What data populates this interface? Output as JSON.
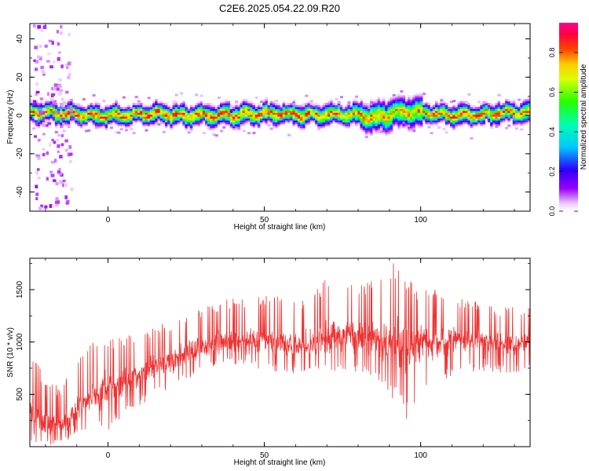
{
  "title": "C2E6.2025.054.22.09.R20",
  "chart_data": [
    {
      "type": "heatmap",
      "title": "C2E6.2025.054.22.09.R20",
      "xlabel": "Height of straight line (km)",
      "ylabel": "Frequency (Hz)",
      "xlim": [
        -25,
        135
      ],
      "ylim": [
        -50,
        48
      ],
      "x_ticks": [
        "0",
        "50",
        "100"
      ],
      "y_ticks": [
        "-40",
        "-20",
        "0",
        "20",
        "40"
      ],
      "x_tick_values": [
        0,
        50,
        100
      ],
      "y_tick_values": [
        -40,
        -20,
        0,
        20,
        40
      ],
      "grid": false,
      "colorbar": {
        "label": "Normalized spectral amplitude",
        "range": [
          0.0,
          0.95
        ],
        "ticks": [
          "0.0",
          "0.2",
          "0.4",
          "0.6",
          "0.8"
        ],
        "tick_values": [
          0.0,
          0.2,
          0.4,
          0.6,
          0.8
        ],
        "colormap": "rainbow (white, violet, blue, cyan, green, yellow, orange, red, magenta)"
      },
      "ridge": {
        "description": "narrow high-amplitude band near 0 Hz across all heights, plus sparse low-amplitude speckle below -12 km",
        "x": [
          -25,
          -15,
          -5,
          5,
          15,
          25,
          35,
          45,
          55,
          65,
          75,
          85,
          95,
          105,
          115,
          125,
          135
        ],
        "center_hz": [
          2,
          1,
          0,
          0,
          1,
          0,
          0,
          1,
          1,
          0,
          1,
          -1,
          2,
          1,
          0,
          1,
          2
        ],
        "peak_amplitude": [
          0.85,
          0.9,
          0.92,
          0.92,
          0.9,
          0.9,
          0.9,
          0.92,
          0.9,
          0.88,
          0.88,
          0.85,
          0.8,
          0.88,
          0.9,
          0.88,
          0.88
        ]
      }
    },
    {
      "type": "line",
      "xlabel": "Height of straight line (km)",
      "ylabel": "SNR (10 * v/v)",
      "xlim": [
        -25,
        135
      ],
      "ylim": [
        0,
        1800
      ],
      "x_ticks": [
        "0",
        "50",
        "100"
      ],
      "y_ticks": [
        "500",
        "1000",
        "1500"
      ],
      "x_tick_values": [
        0,
        50,
        100
      ],
      "y_tick_values": [
        500,
        1000,
        1500
      ],
      "grid": false,
      "series": [
        {
          "color": "#ee3333",
          "description": "very noisy SNR trace; envelope summarized per height",
          "x": [
            -25,
            -20,
            -15,
            -10,
            -5,
            0,
            5,
            10,
            15,
            20,
            25,
            30,
            35,
            40,
            45,
            50,
            55,
            60,
            65,
            70,
            75,
            80,
            85,
            90,
            95,
            100,
            105,
            110,
            115,
            120,
            125,
            130,
            135
          ],
          "mean": [
            350,
            220,
            200,
            350,
            480,
            570,
            620,
            680,
            760,
            820,
            880,
            950,
            990,
            1000,
            1010,
            1000,
            990,
            960,
            980,
            1020,
            1050,
            1040,
            1030,
            1000,
            960,
            980,
            1000,
            1020,
            1010,
            1000,
            990,
            980,
            1000
          ],
          "min": [
            50,
            10,
            20,
            120,
            200,
            120,
            300,
            380,
            480,
            560,
            640,
            700,
            760,
            780,
            760,
            720,
            700,
            700,
            680,
            700,
            740,
            700,
            650,
            520,
            230,
            420,
            560,
            680,
            700,
            720,
            700,
            680,
            720
          ],
          "max": [
            940,
            650,
            560,
            860,
            1000,
            1030,
            1060,
            1110,
            1150,
            1200,
            1260,
            1330,
            1380,
            1430,
            1440,
            1440,
            1430,
            1400,
            1460,
            1620,
            1680,
            1600,
            1590,
            1790,
            1640,
            1500,
            1520,
            1420,
            1400,
            1380,
            1320,
            1340,
            1330
          ]
        }
      ]
    }
  ]
}
